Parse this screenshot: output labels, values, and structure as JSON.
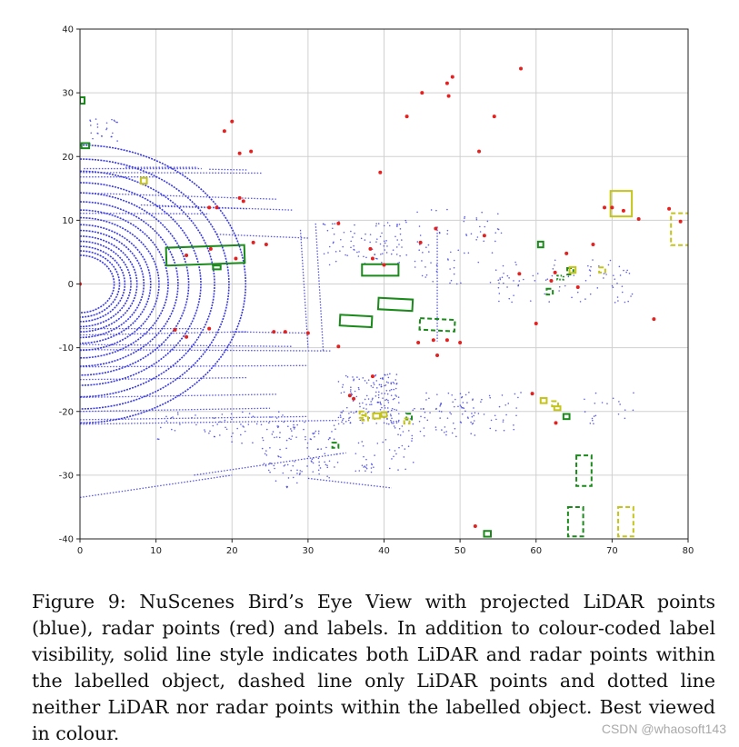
{
  "figure": {
    "caption": "Figure 9: NuScenes Bird’s Eye View with projected LiDAR points (blue), radar points (red) and labels. In addition to colour-coded label visibility, solid line style indicates both LiDAR and radar points within the labelled object, dashed line only LiDAR points and dotted line neither LiDAR nor radar points within the labelled object. Best viewed in colour.",
    "watermark": "CSDN @whaosoft143"
  },
  "colors": {
    "lidar": "#3a3adf",
    "radar": "#e5201f",
    "label_green": "#1a8a1a",
    "label_yellow": "#c4c41a",
    "grid": "#d0d0d0"
  },
  "chart_data": {
    "type": "scatter",
    "title": "",
    "xlabel": "",
    "ylabel": "",
    "xlim": [
      0,
      80
    ],
    "ylim": [
      -40,
      40
    ],
    "grid": true,
    "x_ticks": [
      0,
      10,
      20,
      30,
      40,
      50,
      60,
      70,
      80
    ],
    "y_ticks": [
      -40,
      -30,
      -20,
      -10,
      0,
      10,
      20,
      30,
      40
    ],
    "radar_points": [
      [
        20,
        25.5
      ],
      [
        19,
        24
      ],
      [
        21,
        20.5
      ],
      [
        22.5,
        20.8
      ],
      [
        43,
        26.3
      ],
      [
        45,
        30
      ],
      [
        48.3,
        31.5
      ],
      [
        49,
        32.5
      ],
      [
        48.5,
        29.5
      ],
      [
        54.5,
        26.3
      ],
      [
        58,
        33.8
      ],
      [
        52.5,
        20.8
      ],
      [
        39.5,
        17.5
      ],
      [
        21,
        13.5
      ],
      [
        21.5,
        13
      ],
      [
        17,
        12
      ],
      [
        18,
        12
      ],
      [
        34,
        9.5
      ],
      [
        38.2,
        5.5
      ],
      [
        38.5,
        4
      ],
      [
        40,
        3
      ],
      [
        44.8,
        6.5
      ],
      [
        46.8,
        8.7
      ],
      [
        53.2,
        7.6
      ],
      [
        57.8,
        1.6
      ],
      [
        62.5,
        1.8
      ],
      [
        64,
        4.8
      ],
      [
        65.5,
        -0.5
      ],
      [
        67.5,
        6.2
      ],
      [
        70,
        12
      ],
      [
        71.5,
        11.5
      ],
      [
        73.5,
        10.2
      ],
      [
        77.5,
        11.8
      ],
      [
        79,
        9.8
      ],
      [
        75.5,
        -5.5
      ],
      [
        60,
        -6.2
      ],
      [
        62,
        0.5
      ],
      [
        69,
        12
      ],
      [
        14,
        4.5
      ],
      [
        17.2,
        5.5
      ],
      [
        22.8,
        6.5
      ],
      [
        24.5,
        6.2
      ],
      [
        20.5,
        4
      ],
      [
        12.5,
        -7.2
      ],
      [
        14,
        -8.3
      ],
      [
        17,
        -7
      ],
      [
        25.5,
        -7.5
      ],
      [
        27,
        -7.5
      ],
      [
        30,
        -7.7
      ],
      [
        34,
        -9.8
      ],
      [
        44.5,
        -9.2
      ],
      [
        46.5,
        -8.8
      ],
      [
        48.3,
        -8.8
      ],
      [
        50,
        -9.2
      ],
      [
        47,
        -11.2
      ],
      [
        38.5,
        -14.5
      ],
      [
        36,
        -18
      ],
      [
        35.5,
        -17.5
      ],
      [
        59.5,
        -17.2
      ],
      [
        62.6,
        -21.8
      ],
      [
        52,
        -38
      ],
      [
        0,
        0
      ]
    ],
    "labels": [
      {
        "cx": 0.3,
        "cy": 28.8,
        "w": 0.6,
        "h": 1.0,
        "angle": 0,
        "color": "green",
        "style": "solid"
      },
      {
        "cx": 0.7,
        "cy": 21.7,
        "w": 1.0,
        "h": 0.8,
        "angle": 0,
        "color": "green",
        "style": "solid"
      },
      {
        "cx": 16.5,
        "cy": 4.5,
        "w": 10.3,
        "h": 2.8,
        "angle": 2,
        "color": "green",
        "style": "solid"
      },
      {
        "cx": 18.0,
        "cy": 2.6,
        "w": 1.0,
        "h": 0.6,
        "angle": 0,
        "color": "green",
        "style": "solid"
      },
      {
        "cx": 39.5,
        "cy": 2.2,
        "w": 4.8,
        "h": 1.8,
        "angle": 0,
        "color": "green",
        "style": "solid"
      },
      {
        "cx": 41.5,
        "cy": -3.2,
        "w": 4.5,
        "h": 1.8,
        "angle": -3,
        "color": "green",
        "style": "solid"
      },
      {
        "cx": 36.3,
        "cy": -5.8,
        "w": 4.2,
        "h": 1.7,
        "angle": -3,
        "color": "green",
        "style": "solid"
      },
      {
        "cx": 47.0,
        "cy": -6.4,
        "w": 4.6,
        "h": 1.8,
        "angle": -3,
        "color": "green",
        "style": "dashed"
      },
      {
        "cx": 60.6,
        "cy": 6.2,
        "w": 0.7,
        "h": 0.9,
        "angle": 0,
        "color": "green",
        "style": "solid"
      },
      {
        "cx": 64.5,
        "cy": 2.0,
        "w": 0.8,
        "h": 1.0,
        "angle": 0,
        "color": "green",
        "style": "dashed"
      },
      {
        "cx": 63.2,
        "cy": 1.0,
        "w": 0.8,
        "h": 0.6,
        "angle": 0,
        "color": "green",
        "style": "dotted"
      },
      {
        "cx": 61.8,
        "cy": -1.2,
        "w": 0.8,
        "h": 0.9,
        "angle": 0,
        "color": "green",
        "style": "dashed"
      },
      {
        "cx": 66.3,
        "cy": -29.3,
        "w": 2.0,
        "h": 4.8,
        "angle": 0,
        "color": "green",
        "style": "dashed"
      },
      {
        "cx": 65.2,
        "cy": -37.3,
        "w": 2.0,
        "h": 4.6,
        "angle": 0,
        "color": "green",
        "style": "dashed"
      },
      {
        "cx": 43.3,
        "cy": -20.8,
        "w": 0.7,
        "h": 0.9,
        "angle": 0,
        "color": "green",
        "style": "dashed"
      },
      {
        "cx": 33.6,
        "cy": -25.3,
        "w": 0.8,
        "h": 0.8,
        "angle": 0,
        "color": "green",
        "style": "dashed"
      },
      {
        "cx": 53.6,
        "cy": -39.2,
        "w": 0.9,
        "h": 0.9,
        "angle": 0,
        "color": "green",
        "style": "solid"
      },
      {
        "cx": 64.0,
        "cy": -20.8,
        "w": 0.8,
        "h": 0.8,
        "angle": 0,
        "color": "green",
        "style": "solid"
      },
      {
        "cx": 8.4,
        "cy": 16.2,
        "w": 0.8,
        "h": 0.9,
        "angle": 0,
        "color": "yellow",
        "style": "solid"
      },
      {
        "cx": 71.2,
        "cy": 12.6,
        "w": 2.8,
        "h": 4.0,
        "angle": 0,
        "color": "yellow",
        "style": "solid"
      },
      {
        "cx": 79.0,
        "cy": 8.6,
        "w": 2.5,
        "h": 5.0,
        "angle": 0,
        "color": "yellow",
        "style": "dashed"
      },
      {
        "cx": 64.8,
        "cy": 2.2,
        "w": 0.8,
        "h": 0.9,
        "angle": 0,
        "color": "yellow",
        "style": "solid"
      },
      {
        "cx": 68.7,
        "cy": 2.2,
        "w": 0.8,
        "h": 0.8,
        "angle": 0,
        "color": "yellow",
        "style": "dashed"
      },
      {
        "cx": 61.0,
        "cy": -18.3,
        "w": 0.8,
        "h": 0.8,
        "angle": 0,
        "color": "yellow",
        "style": "solid"
      },
      {
        "cx": 62.5,
        "cy": -18.8,
        "w": 0.8,
        "h": 0.8,
        "angle": 0,
        "color": "yellow",
        "style": "dashed"
      },
      {
        "cx": 62.8,
        "cy": -19.5,
        "w": 0.8,
        "h": 0.6,
        "angle": 0,
        "color": "yellow",
        "style": "solid"
      },
      {
        "cx": 37.2,
        "cy": -20.5,
        "w": 0.8,
        "h": 1.0,
        "angle": 0,
        "color": "yellow",
        "style": "dashed"
      },
      {
        "cx": 37.5,
        "cy": -21.0,
        "w": 0.8,
        "h": 0.8,
        "angle": 0,
        "color": "yellow",
        "style": "dashed"
      },
      {
        "cx": 39.0,
        "cy": -20.7,
        "w": 0.9,
        "h": 0.8,
        "angle": 0,
        "color": "yellow",
        "style": "solid"
      },
      {
        "cx": 40.0,
        "cy": -20.5,
        "w": 0.7,
        "h": 0.7,
        "angle": 0,
        "color": "yellow",
        "style": "solid"
      },
      {
        "cx": 43.0,
        "cy": -21.5,
        "w": 0.7,
        "h": 0.8,
        "angle": 0,
        "color": "yellow",
        "style": "dashed"
      },
      {
        "cx": 71.8,
        "cy": -37.3,
        "w": 2.0,
        "h": 4.6,
        "angle": 0,
        "color": "yellow",
        "style": "dashed"
      }
    ],
    "lidar_rings": {
      "center": [
        0,
        0
      ],
      "radii": [
        4.5,
        5.2,
        5.9,
        6.7,
        7.5,
        8.4,
        9.3,
        10.4,
        11.6,
        12.9,
        14.3,
        15.9,
        17.7,
        19.6,
        21.8
      ]
    },
    "lidar_segments": [
      [
        [
          0.5,
          18.1
        ],
        [
          16,
          18.1
        ]
      ],
      [
        [
          6,
          18.3
        ],
        [
          15.5,
          18.3
        ]
      ],
      [
        [
          17,
          18.0
        ],
        [
          22,
          17.9
        ]
      ],
      [
        [
          0,
          17.5
        ],
        [
          24,
          17.4
        ]
      ],
      [
        [
          0,
          16.8
        ],
        [
          10,
          16.8
        ]
      ],
      [
        [
          0,
          14.3
        ],
        [
          26,
          13.3
        ]
      ],
      [
        [
          8,
          12.4
        ],
        [
          28,
          11.6
        ]
      ],
      [
        [
          10,
          12.2
        ],
        [
          22,
          11.8
        ]
      ],
      [
        [
          0,
          11.1
        ],
        [
          17,
          11.0
        ]
      ],
      [
        [
          18,
          7.8
        ],
        [
          30,
          7.2
        ]
      ],
      [
        [
          0,
          -7.0
        ],
        [
          16,
          -7.0
        ]
      ],
      [
        [
          0,
          -8.0
        ],
        [
          22,
          -7.5
        ]
      ],
      [
        [
          20,
          -7.5
        ],
        [
          30,
          -7.7
        ]
      ],
      [
        [
          0,
          -9.5
        ],
        [
          28,
          -9.8
        ]
      ],
      [
        [
          0,
          -10.3
        ],
        [
          33,
          -10.5
        ]
      ],
      [
        [
          0,
          -13.0
        ],
        [
          30,
          -12.8
        ]
      ],
      [
        [
          0,
          -15.0
        ],
        [
          22,
          -14.7
        ]
      ],
      [
        [
          0,
          -17.8
        ],
        [
          26,
          -17.3
        ]
      ],
      [
        [
          0,
          -20.0
        ],
        [
          25,
          -19.5
        ]
      ],
      [
        [
          0,
          -21.3
        ],
        [
          30,
          -20.8
        ]
      ],
      [
        [
          0,
          -22.0
        ],
        [
          34,
          -21.4
        ]
      ],
      [
        [
          0,
          -33.5
        ],
        [
          20,
          -30.0
        ]
      ],
      [
        [
          15,
          -30.0
        ],
        [
          35,
          -26.5
        ]
      ],
      [
        [
          30,
          -30.5
        ],
        [
          41,
          -32.0
        ]
      ],
      [
        [
          31,
          9.5
        ],
        [
          32,
          -10.5
        ]
      ],
      [
        [
          29,
          8.5
        ],
        [
          30,
          -10.0
        ]
      ],
      [
        [
          47,
          9.0
        ],
        [
          47,
          -9.0
        ]
      ]
    ],
    "lidar_clusters": [
      {
        "x": [
          32,
          43
        ],
        "y": [
          3,
          10
        ],
        "n": 90
      },
      {
        "x": [
          34,
          42
        ],
        "y": [
          -22,
          -14
        ],
        "n": 160
      },
      {
        "x": [
          40,
          52
        ],
        "y": [
          -24,
          -17
        ],
        "n": 90
      },
      {
        "x": [
          44,
          56
        ],
        "y": [
          0,
          12
        ],
        "n": 70
      },
      {
        "x": [
          55,
          73
        ],
        "y": [
          -3,
          4
        ],
        "n": 80
      },
      {
        "x": [
          24,
          34
        ],
        "y": [
          -30,
          -22
        ],
        "n": 70
      },
      {
        "x": [
          10,
          30
        ],
        "y": [
          -25,
          -20
        ],
        "n": 70
      },
      {
        "x": [
          50,
          58
        ],
        "y": [
          -23,
          -17
        ],
        "n": 40
      },
      {
        "x": [
          1,
          5
        ],
        "y": [
          22,
          26
        ],
        "n": 25
      },
      {
        "x": [
          66,
          73
        ],
        "y": [
          -22,
          -17
        ],
        "n": 20
      },
      {
        "x": [
          36,
          44
        ],
        "y": [
          -30,
          -24
        ],
        "n": 40
      },
      {
        "x": [
          25,
          33
        ],
        "y": [
          -32,
          -27
        ],
        "n": 30
      }
    ]
  }
}
